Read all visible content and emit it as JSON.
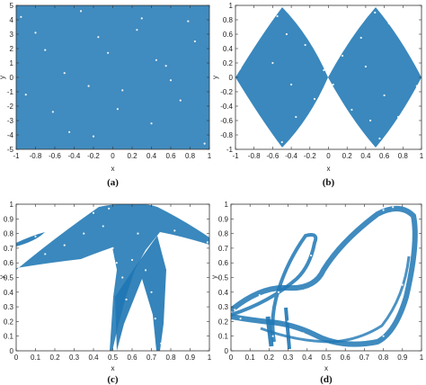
{
  "chart_data": [
    {
      "type": "scatter",
      "caption": "(a)",
      "xlabel": "x",
      "ylabel": "y",
      "xlim": [
        -1,
        1
      ],
      "ylim": [
        -5,
        5
      ],
      "xticks": [
        -1,
        -0.8,
        -0.6,
        -0.4,
        -0.2,
        0,
        0.2,
        0.4,
        0.6,
        0.8,
        1
      ],
      "yticks": [
        -5,
        -4,
        -3,
        -2,
        -1,
        0,
        1,
        2,
        3,
        4,
        5
      ],
      "xtick_labels": [
        "-1",
        "-0.8",
        "-0.6",
        "-0.4",
        "-0.2",
        "0",
        "0.2",
        "0.4",
        "0.6",
        "0.8",
        "1"
      ],
      "ytick_labels": [
        "-5",
        "-4",
        "-3",
        "-2",
        "-1",
        "0",
        "1",
        "2",
        "3",
        "4",
        "5"
      ],
      "color": "#1f77b4",
      "points": [
        [
          -0.95,
          4.2
        ],
        [
          -0.8,
          3.1
        ],
        [
          -0.62,
          -2.4
        ],
        [
          -0.5,
          0.3
        ],
        [
          -0.33,
          4.6
        ],
        [
          -0.2,
          -4.1
        ],
        [
          -0.05,
          1.7
        ],
        [
          0.1,
          -0.9
        ],
        [
          0.25,
          3.3
        ],
        [
          0.4,
          -3.2
        ],
        [
          0.55,
          0.8
        ],
        [
          0.7,
          -1.6
        ],
        [
          0.85,
          2.5
        ],
        [
          0.95,
          -4.6
        ],
        [
          -0.9,
          -1.2
        ],
        [
          -0.7,
          1.9
        ],
        [
          -0.45,
          -3.8
        ],
        [
          -0.15,
          2.8
        ],
        [
          0.05,
          -2.2
        ],
        [
          0.3,
          4.1
        ],
        [
          0.6,
          -0.2
        ],
        [
          0.78,
          3.9
        ],
        [
          -0.25,
          -0.6
        ],
        [
          0.45,
          1.2
        ]
      ]
    },
    {
      "type": "scatter",
      "caption": "(b)",
      "xlabel": "x",
      "ylabel": "y",
      "xlim": [
        -1,
        1
      ],
      "ylim": [
        -1,
        1
      ],
      "xticks": [
        -1,
        -0.8,
        -0.6,
        -0.4,
        -0.2,
        0,
        0.2,
        0.4,
        0.6,
        0.8,
        1
      ],
      "yticks": [
        -1,
        -0.8,
        -0.6,
        -0.4,
        -0.2,
        0,
        0.2,
        0.4,
        0.6,
        0.8,
        1
      ],
      "xtick_labels": [
        "-1",
        "-0.8",
        "-0.6",
        "-0.4",
        "-0.2",
        "0",
        "0.2",
        "0.4",
        "0.6",
        "0.8",
        "1"
      ],
      "ytick_labels": [
        "-1",
        "-0.8",
        "-0.6",
        "-0.4",
        "-0.2",
        "0",
        "0.2",
        "0.4",
        "0.6",
        "0.8",
        "1"
      ],
      "color": "#1f77b4",
      "points": [
        [
          -0.95,
          0.12
        ],
        [
          -0.85,
          -0.4
        ],
        [
          -0.75,
          0.55
        ],
        [
          -0.65,
          -0.75
        ],
        [
          -0.55,
          0.85
        ],
        [
          -0.5,
          -0.9
        ],
        [
          -0.45,
          0.6
        ],
        [
          -0.35,
          -0.55
        ],
        [
          -0.25,
          0.45
        ],
        [
          -0.15,
          -0.3
        ],
        [
          -0.05,
          0.1
        ],
        [
          0.05,
          -0.1
        ],
        [
          0.15,
          0.3
        ],
        [
          0.25,
          -0.45
        ],
        [
          0.35,
          0.55
        ],
        [
          0.45,
          -0.6
        ],
        [
          0.5,
          0.9
        ],
        [
          0.55,
          -0.85
        ],
        [
          0.65,
          0.75
        ],
        [
          0.75,
          -0.55
        ],
        [
          0.85,
          0.4
        ],
        [
          0.95,
          -0.12
        ],
        [
          -0.6,
          0.2
        ],
        [
          -0.4,
          -0.1
        ],
        [
          0.4,
          0.15
        ],
        [
          0.6,
          -0.25
        ]
      ]
    },
    {
      "type": "scatter",
      "caption": "(c)",
      "xlabel": "x",
      "ylabel": "y",
      "xlim": [
        0,
        1
      ],
      "ylim": [
        0,
        1
      ],
      "xticks": [
        0,
        0.1,
        0.2,
        0.3,
        0.4,
        0.5,
        0.6,
        0.7,
        0.8,
        0.9,
        1
      ],
      "yticks": [
        0,
        0.1,
        0.2,
        0.3,
        0.4,
        0.5,
        0.6,
        0.7,
        0.8,
        0.9,
        1
      ],
      "xtick_labels": [
        "0",
        "0.1",
        "0.2",
        "0.3",
        "0.4",
        "0.5",
        "0.6",
        "0.7",
        "0.8",
        "0.9",
        "1"
      ],
      "ytick_labels": [
        "0",
        "0.1",
        "0.2",
        "0.3",
        "0.4",
        "0.5",
        "0.6",
        "0.7",
        "0.8",
        "0.9",
        "1"
      ],
      "color": "#1f77b4",
      "points": [
        [
          0.02,
          0.7
        ],
        [
          0.05,
          0.62
        ],
        [
          0.1,
          0.78
        ],
        [
          0.15,
          0.66
        ],
        [
          0.2,
          0.85
        ],
        [
          0.25,
          0.72
        ],
        [
          0.3,
          0.9
        ],
        [
          0.35,
          0.8
        ],
        [
          0.4,
          0.94
        ],
        [
          0.45,
          0.85
        ],
        [
          0.48,
          0.97
        ],
        [
          0.5,
          0.7
        ],
        [
          0.52,
          0.6
        ],
        [
          0.55,
          0.5
        ],
        [
          0.57,
          0.35
        ],
        [
          0.58,
          0.1
        ],
        [
          0.6,
          0.62
        ],
        [
          0.63,
          0.8
        ],
        [
          0.67,
          0.55
        ],
        [
          0.7,
          0.4
        ],
        [
          0.72,
          0.22
        ],
        [
          0.75,
          0.05
        ],
        [
          0.78,
          0.6
        ],
        [
          0.82,
          0.82
        ],
        [
          0.88,
          0.76
        ],
        [
          0.95,
          0.72
        ],
        [
          0.99,
          0.74
        ]
      ]
    },
    {
      "type": "scatter",
      "caption": "(d)",
      "xlabel": "x",
      "ylabel": "y",
      "xlim": [
        0,
        1
      ],
      "ylim": [
        0,
        1
      ],
      "xticks": [
        0,
        0.1,
        0.2,
        0.3,
        0.4,
        0.5,
        0.6,
        0.7,
        0.8,
        0.9,
        1
      ],
      "yticks": [
        0,
        0.1,
        0.2,
        0.3,
        0.4,
        0.5,
        0.6,
        0.7,
        0.8,
        0.9,
        1
      ],
      "xtick_labels": [
        "0",
        "0.1",
        "0.2",
        "0.3",
        "0.4",
        "0.5",
        "0.6",
        "0.7",
        "0.8",
        "0.9",
        "1"
      ],
      "ytick_labels": [
        "0",
        "0.1",
        "0.2",
        "0.3",
        "0.4",
        "0.5",
        "0.6",
        "0.7",
        "0.8",
        "0.9",
        "1"
      ],
      "color": "#1f77b4",
      "points": [
        [
          0.02,
          0.28
        ],
        [
          0.05,
          0.22
        ],
        [
          0.1,
          0.32
        ],
        [
          0.15,
          0.38
        ],
        [
          0.2,
          0.25
        ],
        [
          0.22,
          0.1
        ],
        [
          0.25,
          0.4
        ],
        [
          0.28,
          0.6
        ],
        [
          0.3,
          0.2
        ],
        [
          0.33,
          0.72
        ],
        [
          0.35,
          0.35
        ],
        [
          0.38,
          0.12
        ],
        [
          0.4,
          0.55
        ],
        [
          0.45,
          0.25
        ],
        [
          0.5,
          0.15
        ],
        [
          0.55,
          0.22
        ],
        [
          0.6,
          0.3
        ],
        [
          0.65,
          0.45
        ],
        [
          0.7,
          0.65
        ],
        [
          0.75,
          0.85
        ],
        [
          0.8,
          0.96
        ],
        [
          0.85,
          0.98
        ],
        [
          0.88,
          0.75
        ],
        [
          0.9,
          0.45
        ],
        [
          0.92,
          0.18
        ],
        [
          0.87,
          0.12
        ],
        [
          0.8,
          0.1
        ],
        [
          0.7,
          0.15
        ],
        [
          0.6,
          0.12
        ],
        [
          0.45,
          0.38
        ],
        [
          0.35,
          0.55
        ],
        [
          0.42,
          0.65
        ]
      ]
    }
  ]
}
